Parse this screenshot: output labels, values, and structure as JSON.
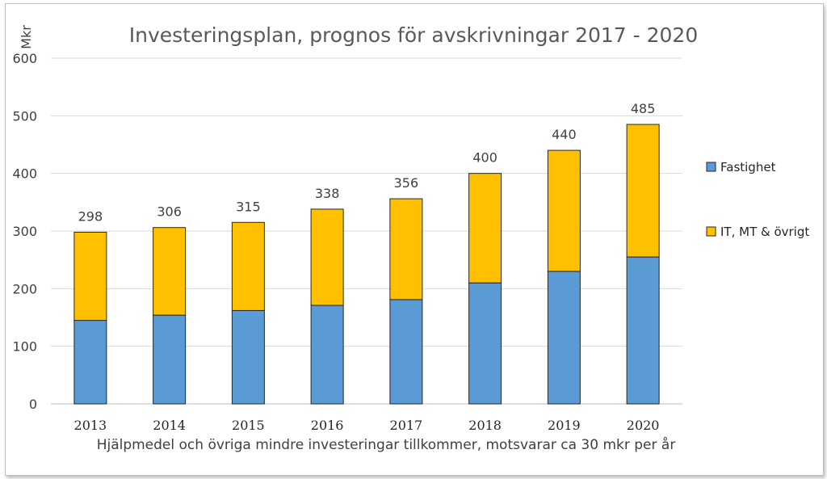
{
  "chart_data": {
    "type": "bar",
    "stacked": true,
    "title": "Investeringsplan, prognos för avskrivningar 2017 - 2020",
    "ylabel": "Mkr",
    "xlabel": "",
    "note": "Hjälpmedel och övriga mindre investeringar tillkommer, motsvarar ca 30 mkr per år",
    "categories": [
      "2013",
      "2014",
      "2015",
      "2016",
      "2017",
      "2018",
      "2019",
      "2020"
    ],
    "series": [
      {
        "name": "Fastighet",
        "color": "#5B9BD5",
        "values": [
          145,
          154,
          162,
          171,
          181,
          210,
          230,
          255
        ]
      },
      {
        "name": "IT, MT & övrigt",
        "color": "#FFC000",
        "values": [
          153,
          152,
          153,
          167,
          175,
          190,
          210,
          230
        ]
      }
    ],
    "totals": [
      298,
      306,
      315,
      338,
      356,
      400,
      440,
      485
    ],
    "ylim": [
      0,
      600
    ],
    "yticks": [
      0,
      100,
      200,
      300,
      400,
      500,
      600
    ],
    "grid": true,
    "legend_position": "right"
  }
}
